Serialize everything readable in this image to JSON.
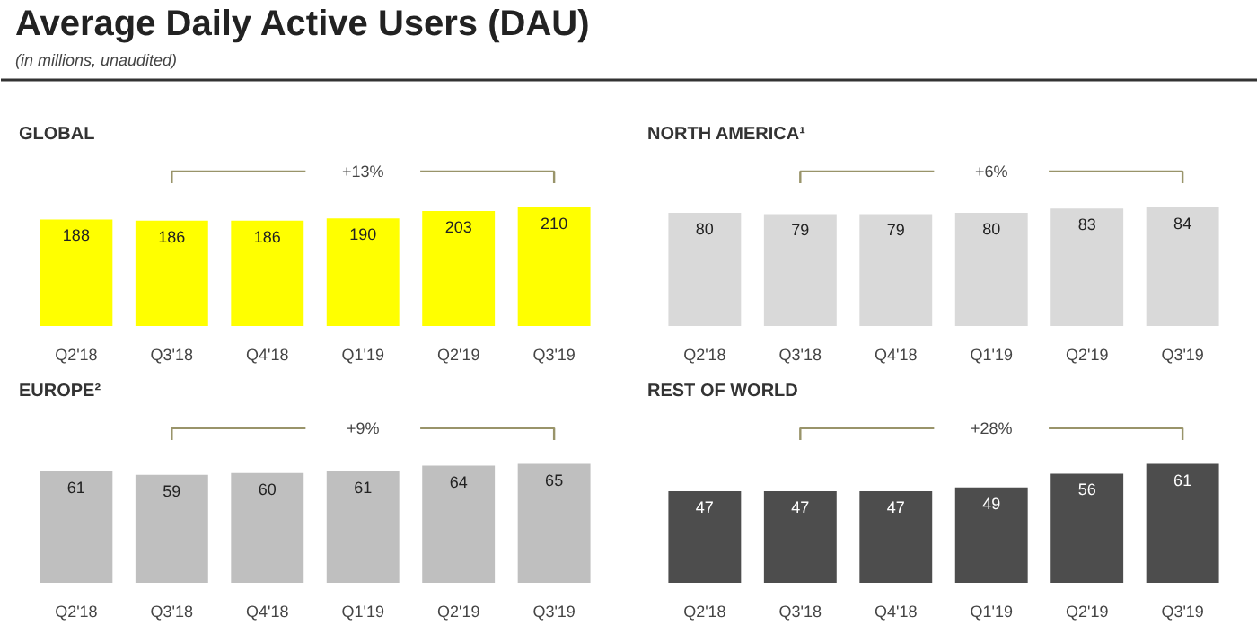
{
  "chart_data": [
    {
      "type": "other",
      "title": "Average Daily Active Users (DAU)",
      "subtitle": "(in millions, unaudited)"
    },
    {
      "type": "bar",
      "title": "GLOBAL",
      "categories": [
        "Q2'18",
        "Q3'18",
        "Q4'18",
        "Q1'19",
        "Q2'19",
        "Q3'19"
      ],
      "values": [
        188,
        186,
        186,
        190,
        203,
        210
      ],
      "color": "#ffff00",
      "data_labels": true,
      "annotations": [
        "+13%"
      ]
    },
    {
      "type": "bar",
      "title": "NORTH AMERICA¹",
      "categories": [
        "Q2'18",
        "Q3'18",
        "Q4'18",
        "Q1'19",
        "Q2'19",
        "Q3'19"
      ],
      "values": [
        80,
        79,
        79,
        80,
        83,
        84
      ],
      "color": "#d9d9d9",
      "data_labels": true,
      "annotations": [
        "+6%"
      ]
    },
    {
      "type": "bar",
      "title": "EUROPE²",
      "categories": [
        "Q2'18",
        "Q3'18",
        "Q4'18",
        "Q1'19",
        "Q2'19",
        "Q3'19"
      ],
      "values": [
        61,
        59,
        60,
        61,
        64,
        65
      ],
      "color": "#bfbfbf",
      "data_labels": true,
      "annotations": [
        "+9%"
      ]
    },
    {
      "type": "bar",
      "title": "REST OF WORLD",
      "categories": [
        "Q2'18",
        "Q3'18",
        "Q4'18",
        "Q1'19",
        "Q2'19",
        "Q3'19"
      ],
      "values": [
        47,
        47,
        47,
        49,
        56,
        61
      ],
      "color": "#4d4d4d",
      "data_labels": true,
      "annotations": [
        "+28%"
      ]
    }
  ]
}
